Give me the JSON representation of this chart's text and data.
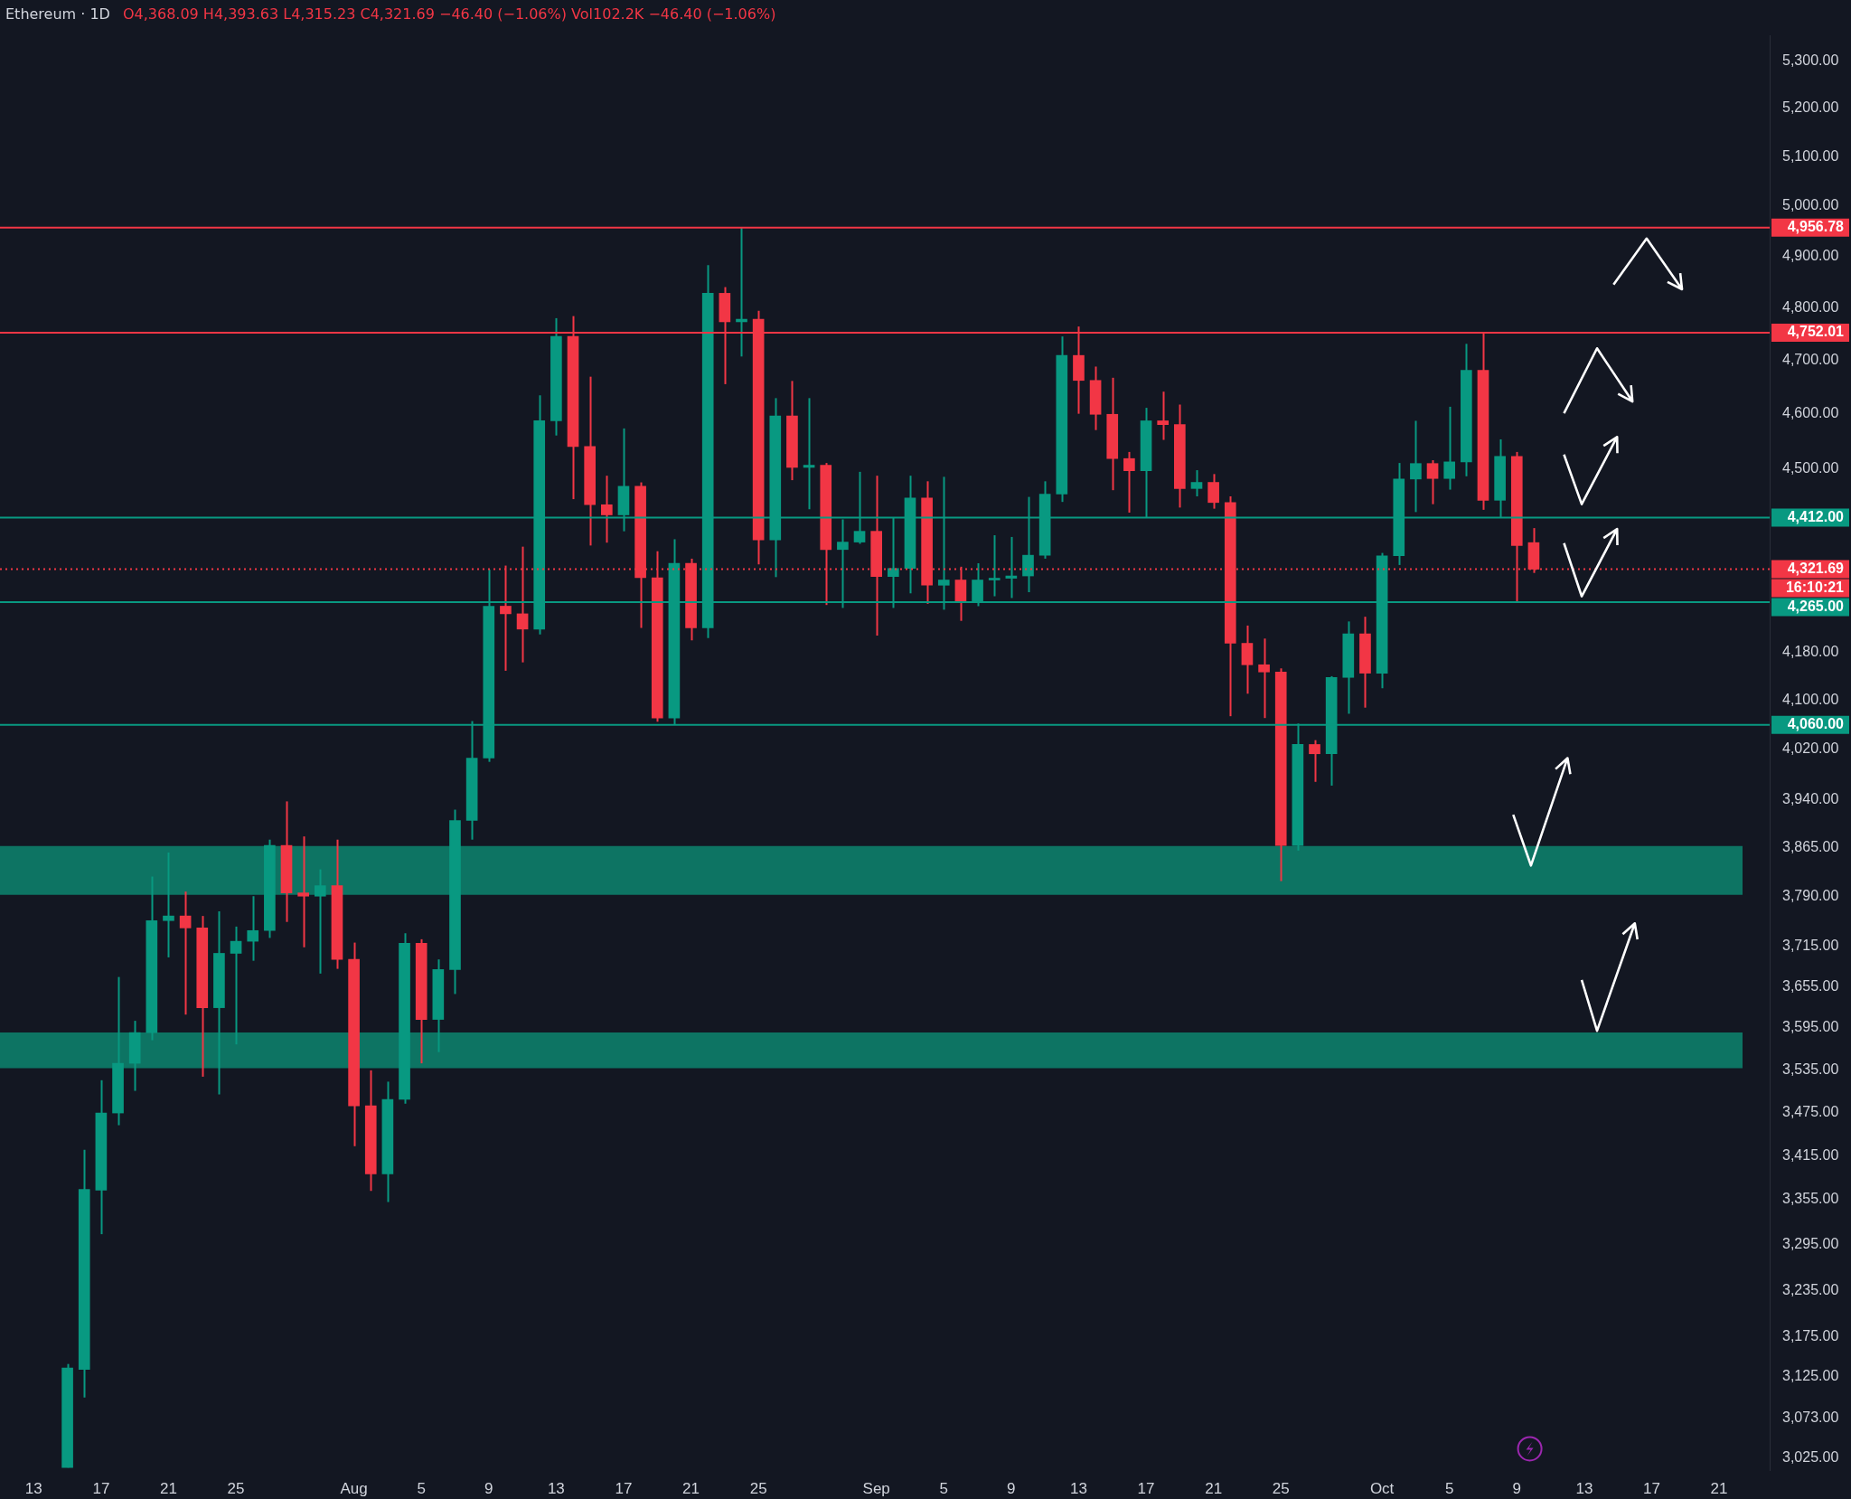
{
  "chart_data": {
    "type": "candlestick",
    "title": "Ethereum · 1D",
    "subtitle": "O4,368.09 H4,393.63 L4,315.23 C4,321.69 −46.40 (−1.06%) Vol102.2K −46.40 (−1.06%)",
    "x": [
      "--07-15",
      "--07-16",
      "--07-17",
      "--07-18",
      "--07-19",
      "--07-20",
      "--07-21",
      "--07-22",
      "--07-23",
      "--07-24",
      "--07-25",
      "--07-26",
      "--07-27",
      "--07-28",
      "--07-29",
      "--07-30",
      "--07-31",
      "--08-01",
      "--08-02",
      "--08-03",
      "--08-04",
      "--08-05",
      "--08-06",
      "--08-07",
      "--08-08",
      "--08-09",
      "--08-10",
      "--08-11",
      "--08-12",
      "--08-13",
      "--08-14",
      "--08-15",
      "--08-16",
      "--08-17",
      "--08-18",
      "--08-19",
      "--08-20",
      "--08-21",
      "--08-22",
      "--08-23",
      "--08-24",
      "--08-25",
      "--08-26",
      "--08-27",
      "--08-28",
      "--08-29",
      "--08-30",
      "--08-31",
      "--09-01",
      "--09-02",
      "--09-03",
      "--09-04",
      "--09-05",
      "--09-06",
      "--09-07",
      "--09-08",
      "--09-09",
      "--09-10",
      "--09-11",
      "--09-12",
      "--09-13",
      "--09-14",
      "--09-15",
      "--09-16",
      "--09-17",
      "--09-18",
      "--09-19",
      "--09-20",
      "--09-21",
      "--09-22",
      "--09-23",
      "--09-24",
      "--09-25",
      "--09-26",
      "--09-27",
      "--09-28",
      "--09-29",
      "--09-30",
      "--10-01",
      "--10-02",
      "--10-03",
      "--10-04",
      "--10-05",
      "--10-06",
      "--10-07",
      "--10-08",
      "--10-09",
      "--10-10"
    ],
    "ohlc": [
      [
        3013,
        3141,
        3013,
        3136
      ],
      [
        3134,
        3423,
        3099,
        3369
      ],
      [
        3368,
        3520,
        3309,
        3474
      ],
      [
        3474,
        3669,
        3457,
        3544
      ],
      [
        3544,
        3605,
        3505,
        3588
      ],
      [
        3588,
        3820,
        3577,
        3753
      ],
      [
        3753,
        3857,
        3698,
        3760
      ],
      [
        3760,
        3797,
        3614,
        3742
      ],
      [
        3742,
        3760,
        3525,
        3624
      ],
      [
        3624,
        3767,
        3500,
        3704
      ],
      [
        3704,
        3744,
        3571,
        3722
      ],
      [
        3722,
        3790,
        3693,
        3738
      ],
      [
        3738,
        3877,
        3727,
        3868
      ],
      [
        3868,
        3937,
        3751,
        3795
      ],
      [
        3795,
        3882,
        3713,
        3790
      ],
      [
        3790,
        3831,
        3674,
        3806
      ],
      [
        3806,
        3877,
        3681,
        3695
      ],
      [
        3695,
        3720,
        3428,
        3484
      ],
      [
        3484,
        3534,
        3367,
        3390
      ],
      [
        3390,
        3518,
        3352,
        3493
      ],
      [
        3493,
        3734,
        3487,
        3719
      ],
      [
        3719,
        3725,
        3544,
        3607
      ],
      [
        3607,
        3695,
        3560,
        3680
      ],
      [
        3680,
        3924,
        3644,
        3907
      ],
      [
        3907,
        4066,
        3877,
        4006
      ],
      [
        4006,
        4321,
        4000,
        4258
      ],
      [
        4258,
        4328,
        4149,
        4245
      ],
      [
        4245,
        4361,
        4163,
        4219
      ],
      [
        4219,
        4634,
        4210,
        4587
      ],
      [
        4587,
        4780,
        4560,
        4745
      ],
      [
        4745,
        4784,
        4445,
        4540
      ],
      [
        4540,
        4669,
        4363,
        4435
      ],
      [
        4435,
        4487,
        4368,
        4417
      ],
      [
        4417,
        4573,
        4388,
        4468
      ],
      [
        4468,
        4475,
        4221,
        4307
      ],
      [
        4307,
        4353,
        4065,
        4071
      ],
      [
        4071,
        4374,
        4060,
        4332
      ],
      [
        4332,
        4340,
        4200,
        4221
      ],
      [
        4221,
        4883,
        4204,
        4828
      ],
      [
        4828,
        4840,
        4655,
        4773
      ],
      [
        4773,
        4956.78,
        4707,
        4778
      ],
      [
        4778,
        4794,
        4330,
        4373
      ],
      [
        4373,
        4629,
        4308,
        4596
      ],
      [
        4596,
        4661,
        4479,
        4502
      ],
      [
        4502,
        4629,
        4427,
        4506
      ],
      [
        4506,
        4510,
        4260,
        4356
      ],
      [
        4356,
        4409,
        4255,
        4369
      ],
      [
        4369,
        4494,
        4366,
        4388
      ],
      [
        4388,
        4487,
        4208,
        4309
      ],
      [
        4309,
        4412,
        4255,
        4323
      ],
      [
        4323,
        4487,
        4280,
        4447
      ],
      [
        4447,
        4477,
        4262,
        4294
      ],
      [
        4294,
        4485,
        4252,
        4303
      ],
      [
        4303,
        4326,
        4233,
        4267
      ],
      [
        4267,
        4332,
        4258,
        4303
      ],
      [
        4303,
        4381,
        4275,
        4306
      ],
      [
        4306,
        4378,
        4272,
        4310
      ],
      [
        4310,
        4449,
        4282,
        4346
      ],
      [
        4346,
        4477,
        4340,
        4454
      ],
      [
        4454,
        4745,
        4440,
        4709
      ],
      [
        4709,
        4764,
        4600,
        4662
      ],
      [
        4662,
        4688,
        4570,
        4599
      ],
      [
        4599,
        4667,
        4461,
        4518
      ],
      [
        4518,
        4530,
        4421,
        4496
      ],
      [
        4496,
        4611,
        4412,
        4587
      ],
      [
        4587,
        4641,
        4552,
        4580
      ],
      [
        4580,
        4617,
        4430,
        4464
      ],
      [
        4464,
        4497,
        4450,
        4475
      ],
      [
        4475,
        4490,
        4428,
        4439
      ],
      [
        4439,
        4450,
        4074,
        4195
      ],
      [
        4195,
        4225,
        4111,
        4159
      ],
      [
        4159,
        4203,
        4071,
        4147
      ],
      [
        4147,
        4153,
        3813,
        3868
      ],
      [
        3868,
        4062,
        3860,
        4028
      ],
      [
        4028,
        4035,
        3968,
        4013
      ],
      [
        4013,
        4140,
        3962,
        4138
      ],
      [
        4138,
        4232,
        4078,
        4211
      ],
      [
        4211,
        4240,
        4088,
        4145
      ],
      [
        4145,
        4350,
        4120,
        4345
      ],
      [
        4345,
        4510,
        4329,
        4481
      ],
      [
        4481,
        4587,
        4422,
        4509
      ],
      [
        4509,
        4515,
        4436,
        4482
      ],
      [
        4482,
        4613,
        4462,
        4512
      ],
      [
        4512,
        4731,
        4486,
        4681
      ],
      [
        4681,
        4752.01,
        4426,
        4443
      ],
      [
        4443,
        4553,
        4412,
        4522
      ],
      [
        4522,
        4530,
        4265,
        4363
      ],
      [
        4368.09,
        4393.63,
        4315.23,
        4321.69
      ]
    ],
    "colors": [
      "#089981",
      "#089981",
      "#089981",
      "#089981",
      "#089981",
      "#089981",
      "#089981",
      "#f23645",
      "#f23645",
      "#089981",
      "#089981",
      "#089981",
      "#089981",
      "#f23645",
      "#f23645",
      "#089981",
      "#f23645",
      "#f23645",
      "#f23645",
      "#089981",
      "#089981",
      "#f23645",
      "#089981",
      "#089981",
      "#089981",
      "#089981",
      "#f23645",
      "#f23645",
      "#089981",
      "#089981",
      "#f23645",
      "#f23645",
      "#f23645",
      "#089981",
      "#f23645",
      "#f23645",
      "#089981",
      "#f23645",
      "#089981",
      "#f23645",
      "#089981",
      "#f23645",
      "#089981",
      "#f23645",
      "#089981",
      "#f23645",
      "#089981",
      "#089981",
      "#f23645",
      "#089981",
      "#089981",
      "#f23645",
      "#089981",
      "#f23645",
      "#089981",
      "#089981",
      "#089981",
      "#089981",
      "#089981",
      "#089981",
      "#f23645",
      "#f23645",
      "#f23645",
      "#f23645",
      "#089981",
      "#f23645",
      "#f23645",
      "#089981",
      "#f23645",
      "#f23645",
      "#f23645",
      "#f23645",
      "#f23645",
      "#089981",
      "#f23645",
      "#089981",
      "#089981",
      "#f23645",
      "#089981",
      "#089981",
      "#089981",
      "#f23645",
      "#089981",
      "#089981",
      "#f23645",
      "#089981",
      "#f23645",
      "#f23645"
    ],
    "log": true,
    "grid": false,
    "legend": false,
    "xlim": [
      "--07-11",
      "--10-24"
    ],
    "xticks": [
      {
        "value": "--07-13",
        "label": "13"
      },
      {
        "value": "--07-17",
        "label": "17"
      },
      {
        "value": "--07-21",
        "label": "21"
      },
      {
        "value": "--07-25",
        "label": "25"
      },
      {
        "value": "--08-01",
        "label": "Aug"
      },
      {
        "value": "--08-05",
        "label": "5"
      },
      {
        "value": "--08-09",
        "label": "9"
      },
      {
        "value": "--08-13",
        "label": "13"
      },
      {
        "value": "--08-17",
        "label": "17"
      },
      {
        "value": "--08-21",
        "label": "21"
      },
      {
        "value": "--08-25",
        "label": "25"
      },
      {
        "value": "--09-01",
        "label": "Sep"
      },
      {
        "value": "--09-05",
        "label": "5"
      },
      {
        "value": "--09-09",
        "label": "9"
      },
      {
        "value": "--09-13",
        "label": "13"
      },
      {
        "value": "--09-17",
        "label": "17"
      },
      {
        "value": "--09-21",
        "label": "21"
      },
      {
        "value": "--09-25",
        "label": "25"
      },
      {
        "value": "--10-01",
        "label": "Oct"
      },
      {
        "value": "--10-05",
        "label": "5"
      },
      {
        "value": "--10-09",
        "label": "9"
      },
      {
        "value": "--10-13",
        "label": "13"
      },
      {
        "value": "--10-17",
        "label": "17"
      },
      {
        "value": "--10-21",
        "label": "21"
      }
    ],
    "ylim": [
      3010,
      5355
    ],
    "yticks": [
      {
        "value": 5300,
        "label": "5,300.00"
      },
      {
        "value": 5200,
        "label": "5,200.00"
      },
      {
        "value": 5100,
        "label": "5,100.00"
      },
      {
        "value": 5000,
        "label": "5,000.00"
      },
      {
        "value": 4900,
        "label": "4,900.00"
      },
      {
        "value": 4800,
        "label": "4,800.00"
      },
      {
        "value": 4700,
        "label": "4,700.00"
      },
      {
        "value": 4600,
        "label": "4,600.00"
      },
      {
        "value": 4500,
        "label": "4,500.00"
      },
      {
        "value": 4180,
        "label": "4,180.00"
      },
      {
        "value": 4100,
        "label": "4,100.00"
      },
      {
        "value": 4020,
        "label": "4,020.00"
      },
      {
        "value": 3940,
        "label": "3,940.00"
      },
      {
        "value": 3865,
        "label": "3,865.00"
      },
      {
        "value": 3790,
        "label": "3,790.00"
      },
      {
        "value": 3715,
        "label": "3,715.00"
      },
      {
        "value": 3655,
        "label": "3,655.00"
      },
      {
        "value": 3595,
        "label": "3,595.00"
      },
      {
        "value": 3535,
        "label": "3,535.00"
      },
      {
        "value": 3475,
        "label": "3,475.00"
      },
      {
        "value": 3415,
        "label": "3,415.00"
      },
      {
        "value": 3355,
        "label": "3,355.00"
      },
      {
        "value": 3295,
        "label": "3,295.00"
      },
      {
        "value": 3235,
        "label": "3,235.00"
      },
      {
        "value": 3175,
        "label": "3,175.00"
      },
      {
        "value": 3125,
        "label": "3,125.00"
      },
      {
        "value": 3073,
        "label": "3,073.00"
      },
      {
        "value": 3025,
        "label": "3,025.00"
      }
    ],
    "ref_lines": [
      {
        "axis": "y",
        "value": 4956.78,
        "label": "4,956.78",
        "color": "#f23645"
      },
      {
        "axis": "y",
        "value": 4752.01,
        "label": "4,752.01",
        "color": "#f23645"
      },
      {
        "axis": "y",
        "value": 4412,
        "label": "4,412.00",
        "color": "#089981"
      },
      {
        "axis": "y",
        "value": 4265,
        "label": "4,265.00",
        "color": "#089981"
      },
      {
        "axis": "y",
        "value": 4060,
        "label": "4,060.00",
        "color": "#089981"
      },
      {
        "axis": "y",
        "value": 4321.69,
        "label": "4,321.69",
        "color": "#f23645",
        "line_style": "dotted"
      }
    ],
    "bands": [
      {
        "axis": "y",
        "from": 3792,
        "to": 3867,
        "color": "#0d7463"
      },
      {
        "axis": "y",
        "from": 3537,
        "to": 3588,
        "color": "#0d7463"
      }
    ],
    "annotations": [
      "16:10:21"
    ]
  }
}
